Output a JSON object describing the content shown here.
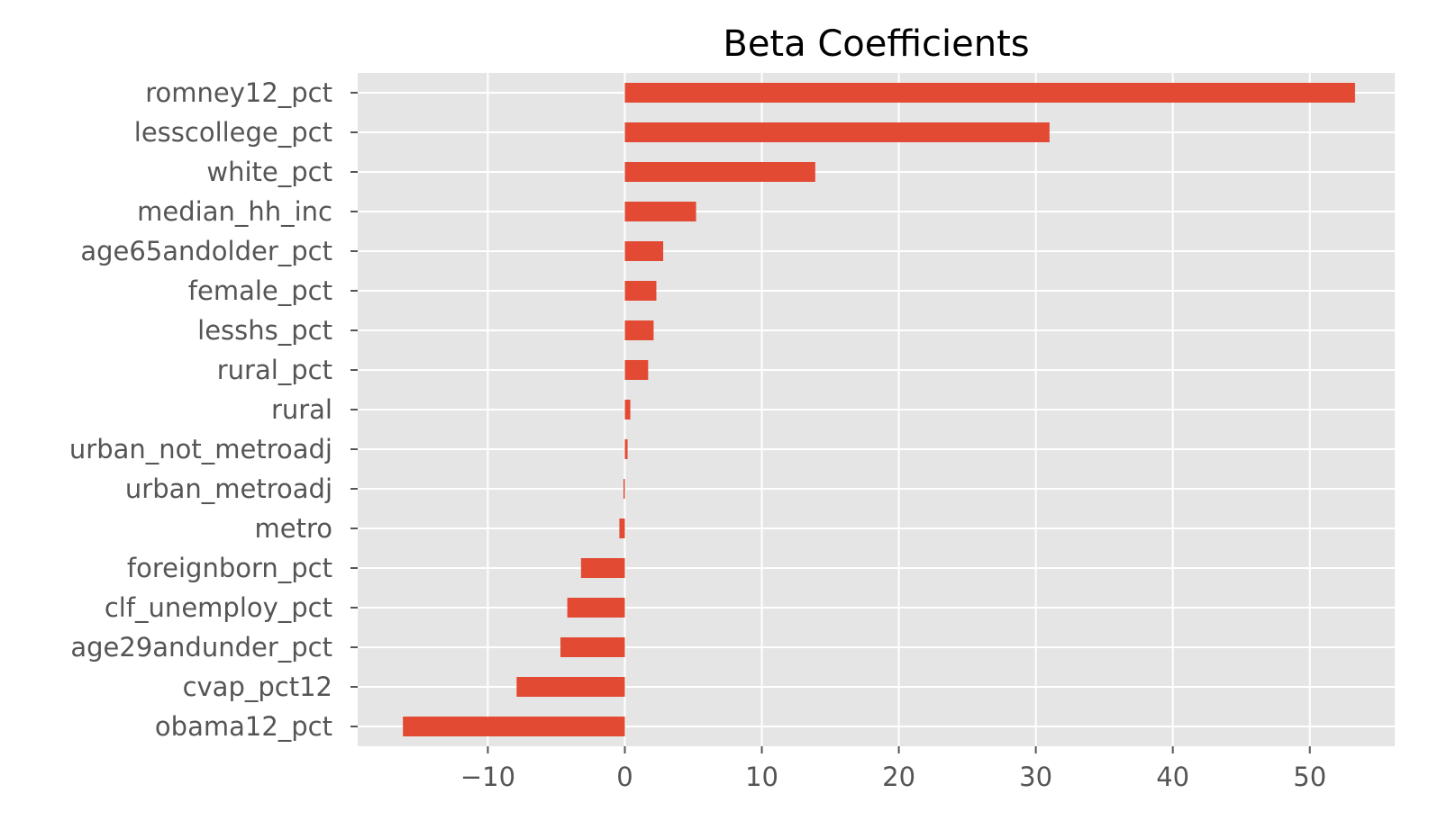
{
  "chart_data": {
    "type": "bar",
    "orientation": "horizontal",
    "title": "Beta Coefficients",
    "xlabel": "",
    "ylabel": "",
    "xlim": [
      -19.5,
      56.2
    ],
    "x_ticks": [
      -10,
      0,
      10,
      20,
      30,
      40,
      50
    ],
    "x_tick_labels": [
      "−10",
      "0",
      "10",
      "20",
      "30",
      "40",
      "50"
    ],
    "grid": true,
    "colors": {
      "bar": "#E24A33",
      "plot_bg": "#E5E5E5",
      "grid": "#FFFFFF",
      "tick": "#555555"
    },
    "categories": [
      "romney12_pct",
      "lesscollege_pct",
      "white_pct",
      "median_hh_inc",
      "age65andolder_pct",
      "female_pct",
      "lesshs_pct",
      "rural_pct",
      "rural",
      "urban_not_metroadj",
      "urban_metroadj",
      "metro",
      "foreignborn_pct",
      "clf_unemploy_pct",
      "age29andunder_pct",
      "cvap_pct12",
      "obama12_pct"
    ],
    "values": [
      53.3,
      31.0,
      13.9,
      5.2,
      2.8,
      2.3,
      2.1,
      1.7,
      0.4,
      0.2,
      -0.1,
      -0.4,
      -3.2,
      -4.2,
      -4.7,
      -7.9,
      -16.2
    ]
  }
}
